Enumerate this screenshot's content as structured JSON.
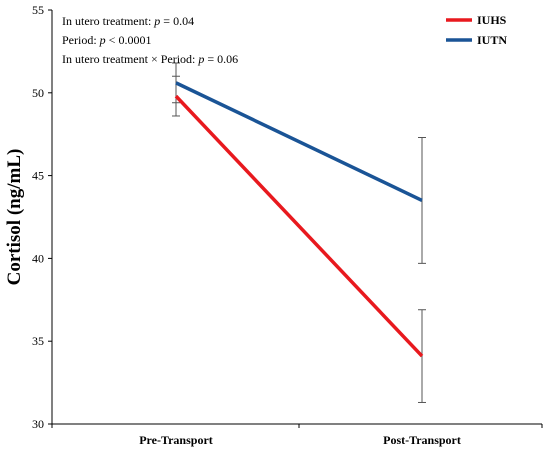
{
  "chart_data": {
    "type": "line",
    "categories": [
      "Pre-Transport",
      "Post-Transport"
    ],
    "ylabel": "Cortisol (ng/mL)",
    "xlabel": "",
    "ylim": [
      30,
      55
    ],
    "yticks": [
      30,
      35,
      40,
      45,
      50,
      55
    ],
    "grid": false,
    "legend_position": "top-right",
    "series": [
      {
        "name": "IUHS",
        "color": "#e8191e",
        "values": [
          49.8,
          34.1
        ],
        "errors": [
          1.2,
          2.8
        ]
      },
      {
        "name": "IUTN",
        "color": "#1a5496",
        "values": [
          50.6,
          43.5
        ],
        "errors": [
          1.2,
          3.8
        ]
      }
    ],
    "annotations": [
      {
        "prefix": "In utero treatment: ",
        "italic": "p",
        "suffix": " = 0.04"
      },
      {
        "prefix": "Period: ",
        "italic": "p",
        "suffix": " < 0.0001"
      },
      {
        "prefix": "In utero treatment × Period: ",
        "italic": "p",
        "suffix": " = 0.06"
      }
    ]
  }
}
